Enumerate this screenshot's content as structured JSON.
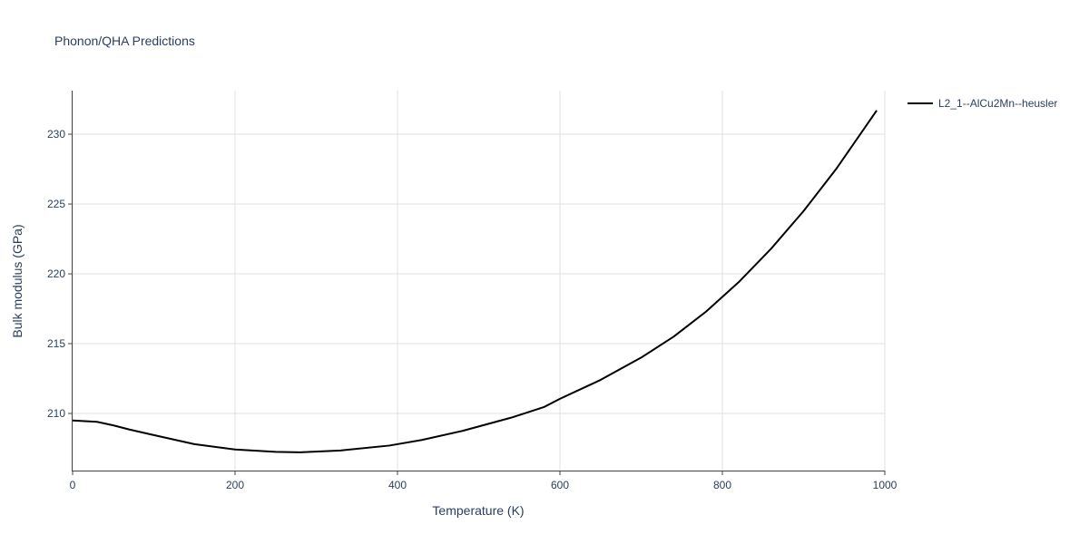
{
  "chart_data": {
    "type": "line",
    "title": "Phonon/QHA Predictions",
    "x_label": "Temperature (K)",
    "y_label": "Bulk modulus (GPa)",
    "x": [
      0,
      30,
      50,
      70,
      100,
      150,
      200,
      250,
      280,
      330,
      390,
      430,
      480,
      540,
      580,
      600,
      650,
      700,
      740,
      780,
      820,
      860,
      900,
      940,
      990
    ],
    "series": [
      {
        "name": "L2_1--AlCu2Mn--heusler",
        "color": "#000000",
        "values": [
          209.5,
          209.4,
          209.15,
          208.85,
          208.45,
          207.8,
          207.42,
          207.25,
          207.22,
          207.35,
          207.7,
          208.1,
          208.75,
          209.7,
          210.45,
          211.05,
          212.4,
          214.0,
          215.5,
          217.3,
          219.4,
          221.8,
          224.5,
          227.5,
          231.7
        ]
      }
    ],
    "xlim": [
      0,
      1000
    ],
    "xticks": [
      0,
      200,
      400,
      600,
      800,
      1000
    ],
    "ylim": [
      205.91,
      233.12
    ],
    "yticks": [
      210,
      215,
      220,
      225,
      230
    ],
    "grid": true,
    "legend": "right"
  }
}
